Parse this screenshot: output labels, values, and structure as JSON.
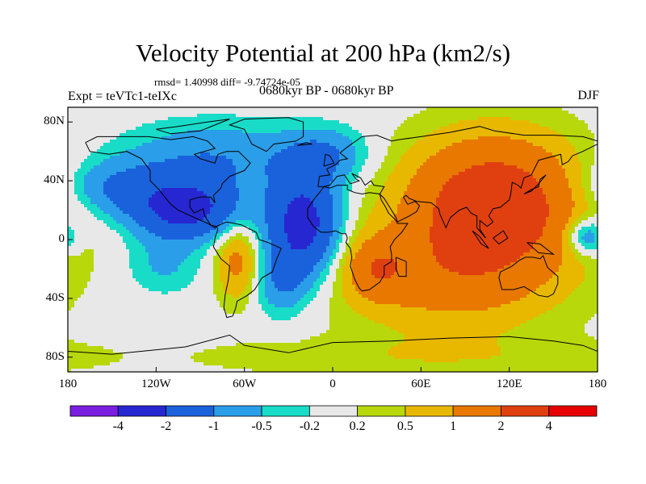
{
  "chart_data": {
    "type": "heatmap",
    "title": "Velocity Potential at 200 hPa (km2/s)",
    "stats_line": "rmsd= 1.40998 diff= -9.74724e-05",
    "left_subtitle": "Expt = teVTc1-teIXc",
    "center_subtitle": "0680kyr BP - 0680kyr BP",
    "right_subtitle": "DJF",
    "projection": "cylindrical equidistant",
    "lon_range": [
      -180,
      180
    ],
    "lat_range": [
      -90,
      90
    ],
    "x_ticks": [
      {
        "lon": -180,
        "label": "180"
      },
      {
        "lon": -120,
        "label": "120W"
      },
      {
        "lon": -60,
        "label": "60W"
      },
      {
        "lon": 0,
        "label": "0"
      },
      {
        "lon": 60,
        "label": "60E"
      },
      {
        "lon": 120,
        "label": "120E"
      },
      {
        "lon": 180,
        "label": "180"
      }
    ],
    "y_ticks": [
      {
        "lat": 80,
        "label": "80N"
      },
      {
        "lat": 40,
        "label": "40N"
      },
      {
        "lat": 0,
        "label": "0"
      },
      {
        "lat": -40,
        "label": "40S"
      },
      {
        "lat": -80,
        "label": "80S"
      }
    ],
    "colorbar": {
      "levels": [
        "-4",
        "-2",
        "-1",
        "-0.5",
        "-0.2",
        "0.2",
        "0.5",
        "1",
        "2",
        "4"
      ],
      "colors": [
        "#7a1ee0",
        "#2727d2",
        "#1a62dc",
        "#2a9ee8",
        "#18dcc8",
        "#e8e8e8",
        "#b8d80c",
        "#e8b800",
        "#e87800",
        "#e04010",
        "#e60000"
      ]
    },
    "field_features": [
      {
        "type": "low",
        "lon": -20,
        "lat": 10,
        "sigma_lon": 17,
        "sigma_lat": 24,
        "amplitude": -2.6
      },
      {
        "type": "low",
        "lon": -100,
        "lat": 20,
        "sigma_lon": 25,
        "sigma_lat": 14,
        "amplitude": -2.4
      },
      {
        "type": "low",
        "lon": -80,
        "lat": 55,
        "sigma_lon": 45,
        "sigma_lat": 18,
        "amplitude": -1.0
      },
      {
        "type": "low",
        "lon": -150,
        "lat": 35,
        "sigma_lon": 30,
        "sigma_lat": 14,
        "amplitude": -1.0
      },
      {
        "type": "low",
        "lon": -5,
        "lat": 58,
        "sigma_lon": 20,
        "sigma_lat": 13,
        "amplitude": -0.9
      },
      {
        "type": "low",
        "lon": -35,
        "lat": -30,
        "sigma_lon": 13,
        "sigma_lat": 16,
        "amplitude": -0.9
      },
      {
        "type": "low",
        "lon": -115,
        "lat": -18,
        "sigma_lon": 18,
        "sigma_lat": 14,
        "amplitude": -0.6
      },
      {
        "type": "low",
        "lon": 172,
        "lat": 2,
        "sigma_lon": 10,
        "sigma_lat": 9,
        "amplitude": -1.4
      },
      {
        "type": "high",
        "lon": 110,
        "lat": 25,
        "sigma_lon": 40,
        "sigma_lat": 30,
        "amplitude": 2.9
      },
      {
        "type": "high",
        "lon": 80,
        "lat": -25,
        "sigma_lon": 50,
        "sigma_lat": 26,
        "amplitude": 1.3
      },
      {
        "type": "high",
        "lon": 30,
        "lat": -20,
        "sigma_lon": 14,
        "sigma_lat": 14,
        "amplitude": 1.2
      },
      {
        "type": "high",
        "lon": -65,
        "lat": -15,
        "sigma_lon": 10,
        "sigma_lat": 18,
        "amplitude": 1.2
      },
      {
        "type": "high",
        "lon": 60,
        "lat": -80,
        "sigma_lon": 120,
        "sigma_lat": 10,
        "amplitude": 0.35
      }
    ]
  }
}
